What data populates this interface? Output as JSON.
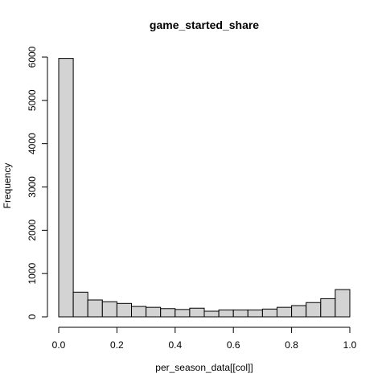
{
  "chart_data": {
    "type": "bar",
    "title": "game_started_share",
    "xlabel": "per_season_data[[col]]",
    "ylabel": "Frequency",
    "bin_edges": [
      0.0,
      0.05,
      0.1,
      0.15,
      0.2,
      0.25,
      0.3,
      0.35,
      0.4,
      0.45,
      0.5,
      0.55,
      0.6,
      0.65,
      0.7,
      0.75,
      0.8,
      0.85,
      0.9,
      0.95,
      1.0
    ],
    "values": [
      5970,
      570,
      390,
      350,
      310,
      240,
      220,
      190,
      170,
      200,
      130,
      160,
      160,
      160,
      180,
      220,
      260,
      330,
      420,
      630
    ],
    "xlim": [
      0,
      1
    ],
    "ylim": [
      0,
      6000
    ],
    "x_ticks": [
      0.0,
      0.2,
      0.4,
      0.6,
      0.8,
      1.0
    ],
    "x_tick_labels": [
      "0.0",
      "0.2",
      "0.4",
      "0.6",
      "0.8",
      "1.0"
    ],
    "y_ticks": [
      0,
      1000,
      2000,
      3000,
      4000,
      5000,
      6000
    ],
    "y_tick_labels": [
      "0",
      "1000",
      "2000",
      "3000",
      "4000",
      "5000",
      "6000"
    ],
    "grid": false,
    "bar_fill": "#d3d3d3",
    "bar_stroke": "#000000"
  }
}
